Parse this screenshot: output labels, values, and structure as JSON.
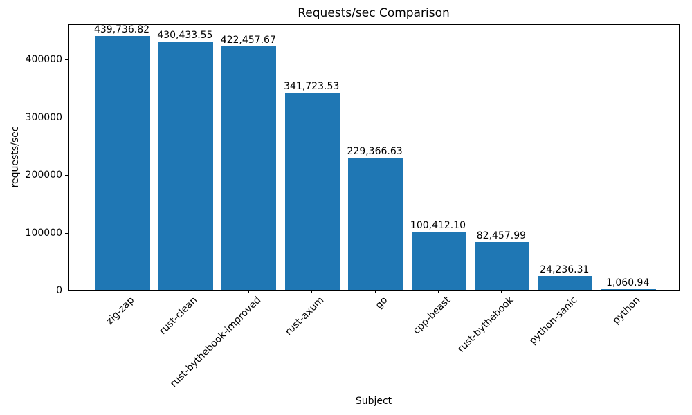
{
  "chart_data": {
    "type": "bar",
    "title": "Requests/sec Comparison",
    "xlabel": "Subject",
    "ylabel": "requests/sec",
    "categories": [
      "zig-zap",
      "rust-clean",
      "rust-bythebook-improved",
      "rust-axum",
      "go",
      "cpp-beast",
      "rust-bythebook",
      "python-sanic",
      "python"
    ],
    "values": [
      439736.82,
      430433.55,
      422457.67,
      341723.53,
      229366.63,
      100412.1,
      82457.99,
      24236.31,
      1060.94
    ],
    "bar_value_labels": [
      "439,736.82",
      "430,433.55",
      "422,457.67",
      "341,723.53",
      "229,366.63",
      "100,412.10",
      "82,457.99",
      "24,236.31",
      "1,060.94"
    ],
    "y_ticks": [
      0,
      100000,
      200000,
      300000,
      400000
    ],
    "y_tick_labels": [
      "0",
      "100000",
      "200000",
      "300000",
      "400000"
    ],
    "ylim": [
      0,
      461723.66
    ],
    "xticks_rotation_deg": 45,
    "grid": false,
    "legend": "none",
    "bar_color": "#1f77b4",
    "text_color": "#000000",
    "background_color": "#ffffff"
  }
}
